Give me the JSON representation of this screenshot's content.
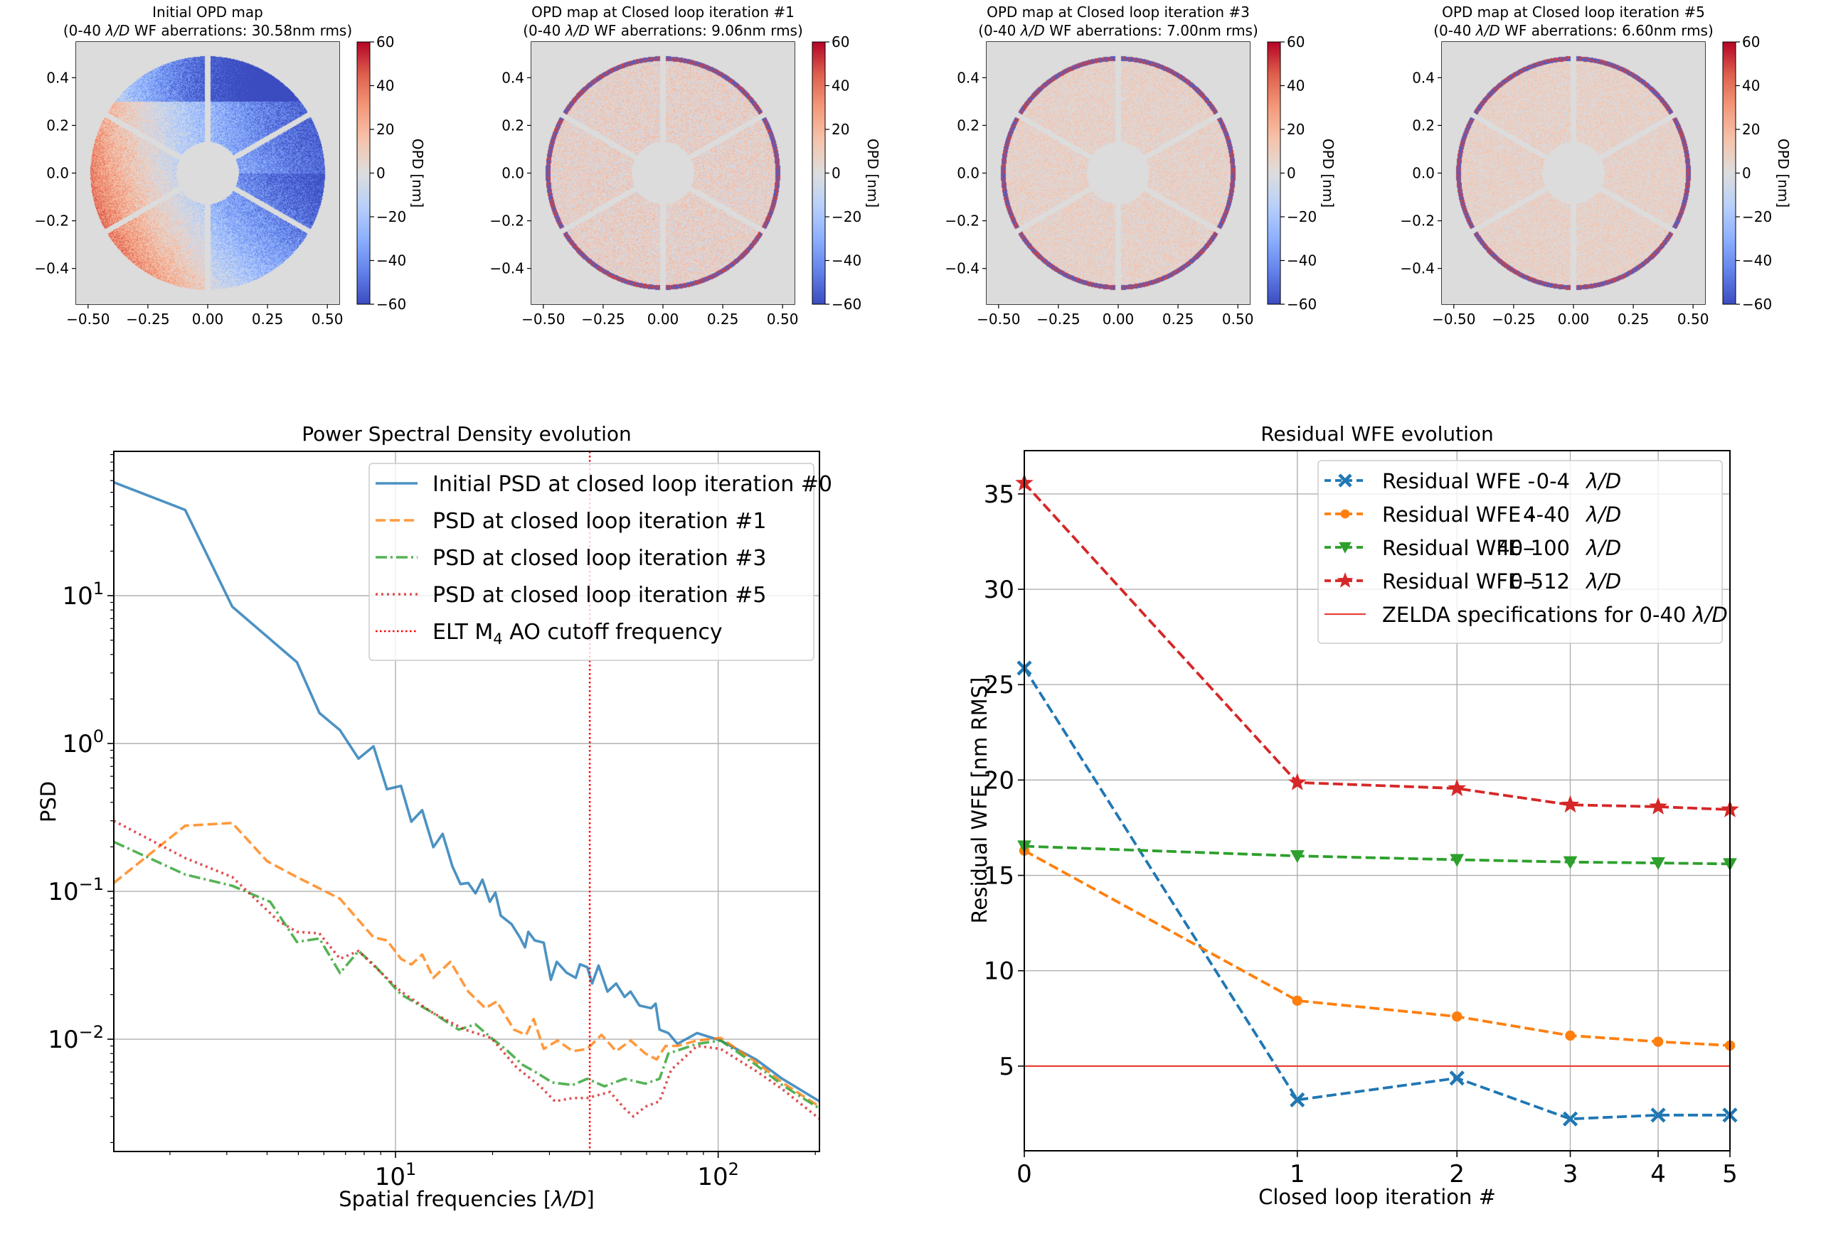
{
  "figure": {
    "opd_panels": [
      {
        "title_line1": "Initial OPD map",
        "title_line2_prefix": "(0-40 ",
        "title_line2_italic": "λ/D",
        "title_line2_suffix": " WF aberrations: 30.58nm rms)",
        "iteration": 0,
        "rms_nm": 30.58
      },
      {
        "title_line1": "OPD map at Closed loop iteration #1",
        "title_line2_prefix": "(0-40 ",
        "title_line2_italic": "λ/D",
        "title_line2_suffix": " WF aberrations: 9.06nm rms)",
        "iteration": 1,
        "rms_nm": 9.06
      },
      {
        "title_line1": "OPD map at Closed loop iteration #3",
        "title_line2_prefix": "(0-40 ",
        "title_line2_italic": "λ/D",
        "title_line2_suffix": " WF aberrations: 7.00nm rms)",
        "iteration": 3,
        "rms_nm": 7.0
      },
      {
        "title_line1": "OPD map at Closed loop iteration #5",
        "title_line2_prefix": "(0-40 ",
        "title_line2_italic": "λ/D",
        "title_line2_suffix": " WF aberrations: 6.60nm rms)",
        "iteration": 5,
        "rms_nm": 6.6
      }
    ],
    "opd_axes": {
      "xlim": [
        -0.55,
        0.55
      ],
      "ylim": [
        -0.55,
        0.55
      ],
      "xticks": [
        -0.5,
        -0.25,
        0.0,
        0.25,
        0.5
      ],
      "xtick_labels": [
        "−0.50",
        "−0.25",
        "0.00",
        "0.25",
        "0.50"
      ],
      "yticks": [
        0.4,
        0.2,
        0.0,
        -0.2,
        -0.4
      ],
      "ytick_labels": [
        "0.4",
        "0.2",
        "0.0",
        "−0.2",
        "−0.4"
      ],
      "background_color": "#dcdcdc"
    },
    "colorbar": {
      "label": "OPD [nm]",
      "range": [
        -60,
        60
      ],
      "ticks": [
        60,
        40,
        20,
        0,
        -20,
        -40,
        -60
      ],
      "tick_labels": [
        "60",
        "40",
        "20",
        "0",
        "−20",
        "−40",
        "−60"
      ],
      "colormap": "coolwarm",
      "color_low": "#3b4cc0",
      "color_mid": "#dddddd",
      "color_high": "#b40426"
    }
  },
  "chart_data": [
    {
      "type": "line",
      "title": "Power Spectral Density evolution",
      "xlabel_prefix": "Spatial frequencies [",
      "xlabel_italic": "λ/D",
      "xlabel_suffix": "]",
      "ylabel": "PSD",
      "xscale": "log",
      "yscale": "log",
      "xlim": [
        1.34,
        206
      ],
      "ylim": [
        0.00174,
        94.6
      ],
      "xticks": [
        10,
        100
      ],
      "xtick_labels": [
        {
          "base": "10",
          "exp": "1"
        },
        {
          "base": "10",
          "exp": "2"
        }
      ],
      "yticks": [
        0.01,
        0.1,
        1,
        10
      ],
      "ytick_labels": [
        {
          "base": "10",
          "exp": "−2"
        },
        {
          "base": "10",
          "exp": "−1"
        },
        {
          "base": "10",
          "exp": "0"
        },
        {
          "base": "10",
          "exp": "1"
        }
      ],
      "grid": true,
      "legend_position": "top-right",
      "series": [
        {
          "name": "Initial PSD at closed loop iteration #0",
          "color": "#1f77b4",
          "style": "solid",
          "x": [
            1.34,
            2.23,
            3.12,
            4.95,
            5.81,
            6.73,
            7.68,
            8.55,
            9.41,
            10.4,
            11.2,
            12.1,
            13.1,
            14.0,
            15.0,
            15.9,
            16.8,
            17.7,
            18.6,
            19.6,
            20.4,
            21.2,
            22.9,
            24.3,
            25.2,
            25.8,
            27.0,
            28.8,
            30.3,
            31.6,
            33.9,
            36.2,
            37.3,
            39.3,
            40.7,
            42.6,
            45.4,
            48.3,
            51.3,
            53.5,
            57.0,
            62.0,
            64.0,
            65.8,
            70.1,
            74.8,
            86,
            101.8,
            131,
            158,
            206
          ],
          "y": [
            58.4,
            38.0,
            8.42,
            3.55,
            1.61,
            1.23,
            0.79,
            0.957,
            0.49,
            0.517,
            0.296,
            0.354,
            0.199,
            0.245,
            0.148,
            0.112,
            0.114,
            0.097,
            0.12,
            0.085,
            0.098,
            0.0685,
            0.06,
            0.0488,
            0.0418,
            0.0533,
            0.0466,
            0.045,
            0.0252,
            0.0334,
            0.0282,
            0.026,
            0.0321,
            0.0307,
            0.0238,
            0.0315,
            0.021,
            0.0238,
            0.0193,
            0.021,
            0.0169,
            0.0162,
            0.0174,
            0.0116,
            0.011,
            0.0093,
            0.011,
            0.0098,
            0.0073,
            0.0054,
            0.0038
          ]
        },
        {
          "name": "PSD at closed loop iteration #1",
          "color": "#ff7f0e",
          "style": "dashed",
          "x": [
            1.34,
            2.23,
            3.12,
            4.0,
            4.95,
            6.73,
            8.55,
            9.41,
            10.4,
            11.2,
            12.1,
            13.1,
            14.8,
            16.8,
            19.0,
            20.6,
            23.3,
            25.4,
            26.8,
            28.8,
            31.8,
            35.4,
            39.3,
            43.5,
            48.3,
            53.5,
            59.5,
            64.5,
            68.7,
            74.8,
            86,
            101.8,
            131,
            158,
            206
          ],
          "y": [
            0.114,
            0.278,
            0.29,
            0.16,
            0.125,
            0.089,
            0.0488,
            0.0466,
            0.035,
            0.032,
            0.0374,
            0.026,
            0.0334,
            0.021,
            0.0162,
            0.018,
            0.0116,
            0.0107,
            0.0137,
            0.0086,
            0.0098,
            0.0083,
            0.0086,
            0.0107,
            0.0083,
            0.0098,
            0.008,
            0.0073,
            0.009,
            0.009,
            0.0098,
            0.0102,
            0.007,
            0.0051,
            0.0035
          ]
        },
        {
          "name": "PSD at closed loop iteration #3",
          "color": "#2ca02c",
          "style": "dashdot",
          "x": [
            1.34,
            2.23,
            3.12,
            4.09,
            4.95,
            5.81,
            6.73,
            7.68,
            8.55,
            10.4,
            13.1,
            15.7,
            17.7,
            19.8,
            21.9,
            24.8,
            27.5,
            30.6,
            35.4,
            39.3,
            44.4,
            51.3,
            59.5,
            65.8,
            70.1,
            86,
            101.8,
            131,
            158,
            206
          ],
          "y": [
            0.216,
            0.13,
            0.109,
            0.085,
            0.0455,
            0.048,
            0.028,
            0.0395,
            0.0321,
            0.0201,
            0.015,
            0.0116,
            0.0126,
            0.0102,
            0.0086,
            0.0067,
            0.0059,
            0.0051,
            0.0049,
            0.0054,
            0.0048,
            0.0054,
            0.005,
            0.0054,
            0.008,
            0.0093,
            0.0098,
            0.0067,
            0.0049,
            0.0034
          ]
        },
        {
          "name": "PSD at closed loop iteration #5",
          "color": "#d62728",
          "style": "dotted",
          "x": [
            1.34,
            2.23,
            3.12,
            4.34,
            4.95,
            5.81,
            6.73,
            7.68,
            10.4,
            13.1,
            16.4,
            19.8,
            23.8,
            28.1,
            31.2,
            35.4,
            39.3,
            46.2,
            51.3,
            54.6,
            59.5,
            65.8,
            71.5,
            86,
            101.8,
            131,
            158,
            206
          ],
          "y": [
            0.3,
            0.168,
            0.125,
            0.063,
            0.0533,
            0.052,
            0.035,
            0.0395,
            0.021,
            0.015,
            0.0116,
            0.0102,
            0.0064,
            0.0048,
            0.0038,
            0.004,
            0.004,
            0.0044,
            0.0034,
            0.003,
            0.0035,
            0.0038,
            0.0062,
            0.009,
            0.0086,
            0.0061,
            0.0046,
            0.0029
          ]
        },
        {
          "name": "ELT M4 AO cutoff frequency",
          "name_prefix": "ELT M",
          "name_sub": "4",
          "name_suffix": " AO cutoff frequency",
          "color": "#ff0000",
          "style": "dotted-vline",
          "x_value": 40
        }
      ]
    },
    {
      "type": "line",
      "title": "Residual WFE evolution",
      "xlabel": "Closed loop iteration #",
      "ylabel": "Residual WFE [nm RMS]",
      "xscale": "log(x+1)",
      "xlim": [
        0,
        5
      ],
      "ylim": [
        0.56,
        37.27
      ],
      "x": [
        0,
        1,
        2,
        3,
        4,
        5
      ],
      "xticks": [
        0,
        1,
        2,
        3,
        4,
        5
      ],
      "yticks": [
        5,
        10,
        15,
        20,
        25,
        30,
        35
      ],
      "grid": true,
      "legend_position": "top-right",
      "series": [
        {
          "name": "Residual WFE -    0-4      λ/D",
          "label_main": "Residual WFE -",
          "label_range": "0-4",
          "label_unit": "λ/D",
          "color": "#1f77b4",
          "style": "dashed",
          "marker": "x",
          "values": [
            25.87,
            3.23,
            4.37,
            2.23,
            2.43,
            2.43
          ]
        },
        {
          "name": "Residual WFE -    4-40    λ/D",
          "label_main": "Residual WFE -",
          "label_range": "4-40",
          "label_unit": "λ/D",
          "color": "#ff7f0e",
          "style": "dashed",
          "marker": "o",
          "values": [
            16.3,
            8.43,
            7.6,
            6.6,
            6.28,
            6.08
          ]
        },
        {
          "name": "Residual WFE -  40-100  λ/D",
          "label_main": "Residual WFE -",
          "label_range": "40-100",
          "label_unit": "λ/D",
          "color": "#2ca02c",
          "style": "dashed",
          "marker": "v",
          "values": [
            16.53,
            16.02,
            15.82,
            15.7,
            15.65,
            15.6
          ]
        },
        {
          "name": "Residual WFE -    0-512  λ/D",
          "label_main": "Residual WFE -",
          "label_range": "0-512",
          "label_unit": "λ/D",
          "color": "#d62728",
          "style": "dashed",
          "marker": "*",
          "values": [
            35.57,
            19.87,
            19.56,
            18.7,
            18.6,
            18.45
          ]
        },
        {
          "name": "ZELDA specifications for 0-40 λ/D",
          "label_main": "ZELDA specifications for 0-40 ",
          "label_unit": "λ/D",
          "color": "#e8413a",
          "style": "solid-hline",
          "y_value": 5
        }
      ]
    }
  ]
}
